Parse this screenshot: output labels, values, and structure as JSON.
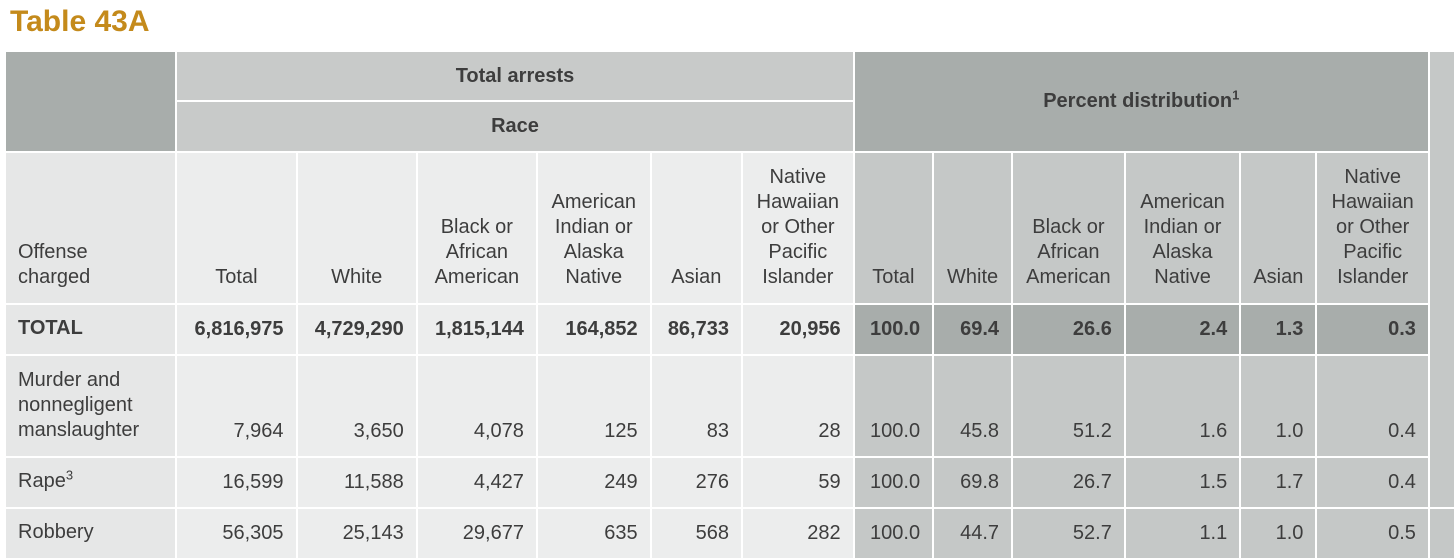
{
  "title": "Table 43A",
  "headers": {
    "total_arrests": "Total arrests",
    "race": "Race",
    "percent_distribution": "Percent distribution",
    "percent_sup": "1",
    "offense_charged": "Offense charged",
    "columns": [
      "Total",
      "White",
      "Black or African American",
      "American Indian or Alaska Native",
      "Asian",
      "Native Hawaiian or Other Pacific Islander"
    ]
  },
  "rows": [
    {
      "label": "TOTAL",
      "sup": "",
      "counts": [
        "6,816,975",
        "4,729,290",
        "1,815,144",
        "164,852",
        "86,733",
        "20,956"
      ],
      "percent": [
        "100.0",
        "69.4",
        "26.6",
        "2.4",
        "1.3",
        "0.3"
      ]
    },
    {
      "label": "Murder and nonnegligent manslaughter",
      "sup": "",
      "counts": [
        "7,964",
        "3,650",
        "4,078",
        "125",
        "83",
        "28"
      ],
      "percent": [
        "100.0",
        "45.8",
        "51.2",
        "1.6",
        "1.0",
        "0.4"
      ]
    },
    {
      "label": "Rape",
      "sup": "3",
      "counts": [
        "16,599",
        "11,588",
        "4,427",
        "249",
        "276",
        "59"
      ],
      "percent": [
        "100.0",
        "69.8",
        "26.7",
        "1.5",
        "1.7",
        "0.4"
      ]
    },
    {
      "label": "Robbery",
      "sup": "",
      "counts": [
        "56,305",
        "25,143",
        "29,677",
        "635",
        "568",
        "282"
      ],
      "percent": [
        "100.0",
        "44.7",
        "52.7",
        "1.1",
        "1.0",
        "0.5"
      ]
    }
  ]
}
